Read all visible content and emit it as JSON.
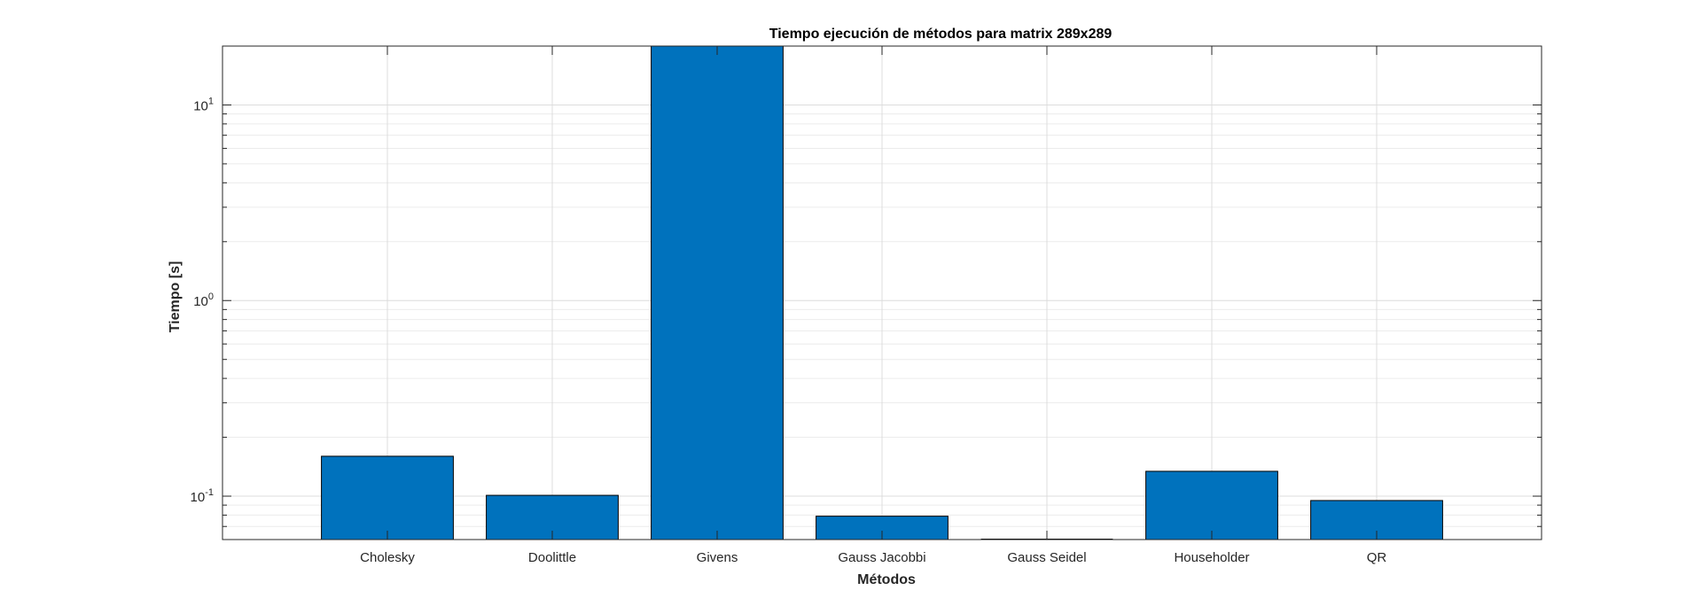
{
  "chart_data": {
    "type": "bar",
    "title": "Tiempo ejecución de métodos para matrix 289x289",
    "xlabel": "Métodos",
    "ylabel": "Tiempo [s]",
    "yscale": "log",
    "ylim": [
      0.06,
      20
    ],
    "grid": true,
    "bar_color": "#0072BD",
    "categories": [
      "Cholesky",
      "Doolittle",
      "Givens",
      "Gauss Jacobbi",
      "Gauss Seidel",
      "Householder",
      "QR"
    ],
    "values": [
      0.16,
      0.101,
      20,
      0.079,
      0.06,
      0.134,
      0.095
    ],
    "yticks": [
      {
        "value": 0.1,
        "base": "10",
        "exp": "-1"
      },
      {
        "value": 1,
        "base": "10",
        "exp": "0"
      },
      {
        "value": 10,
        "base": "10",
        "exp": "1"
      }
    ]
  }
}
